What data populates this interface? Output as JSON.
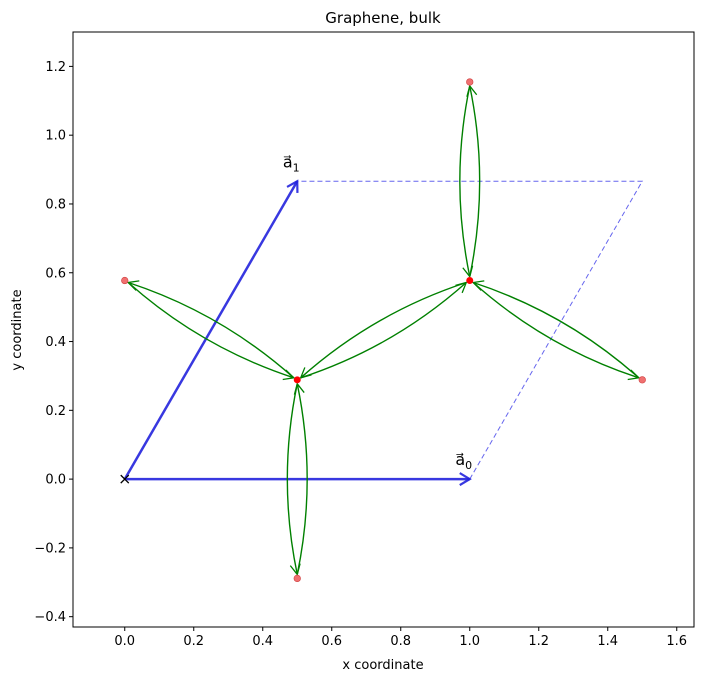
{
  "chart_data": {
    "type": "lattice",
    "title": "Graphene, bulk",
    "x_label": "x coordinate",
    "y_label": "y coordinate",
    "xlim": [
      -0.15,
      1.65
    ],
    "ylim": [
      -0.43,
      1.3
    ],
    "xticks": [
      {
        "value": 0,
        "label": "0.0"
      },
      {
        "value": 0.2,
        "label": "0.2"
      },
      {
        "value": 0.4,
        "label": "0.4"
      },
      {
        "value": 0.6,
        "label": "0.6"
      },
      {
        "value": 0.8,
        "label": "0.8"
      },
      {
        "value": 1.0,
        "label": "1.0"
      },
      {
        "value": 1.2,
        "label": "1.2"
      },
      {
        "value": 1.4,
        "label": "1.4"
      },
      {
        "value": 1.6,
        "label": "1.6"
      }
    ],
    "yticks": [
      {
        "value": -0.4,
        "label": "−0.4"
      },
      {
        "value": -0.2,
        "label": "−0.2"
      },
      {
        "value": 0,
        "label": "0.0"
      },
      {
        "value": 0.2,
        "label": "0.2"
      },
      {
        "value": 0.4,
        "label": "0.4"
      },
      {
        "value": 0.6,
        "label": "0.6"
      },
      {
        "value": 0.8,
        "label": "0.8"
      },
      {
        "value": 1.0,
        "label": "1.0"
      },
      {
        "value": 1.2,
        "label": "1.2"
      }
    ],
    "origin": {
      "x": 0,
      "y": 0
    },
    "vectors": [
      {
        "symbol": "a⃗",
        "index": "0",
        "x": 1.0,
        "y": 0
      },
      {
        "symbol": "a⃗",
        "index": "1",
        "x": 0.5,
        "y": 0.866
      }
    ],
    "sites": [
      {
        "x": 0.5,
        "y": 0.2887
      },
      {
        "x": 1.0,
        "y": 0.5774
      }
    ],
    "images": [
      {
        "x": 0,
        "y": 0.5774
      },
      {
        "x": 0.5,
        "y": -0.2887
      },
      {
        "x": 1.0,
        "y": 1.1547
      },
      {
        "x": 1.5,
        "y": 0.2887
      }
    ],
    "bonds": [
      {
        "x1": 0.5,
        "y1": 0.2887,
        "x2": 0,
        "y2": 0.5774
      },
      {
        "x1": 0.5,
        "y1": 0.2887,
        "x2": 1.0,
        "y2": 0.5774
      },
      {
        "x1": 0.5,
        "y1": 0.2887,
        "x2": 0.5,
        "y2": -0.2887
      },
      {
        "x1": 1.0,
        "y1": 0.5774,
        "x2": 1.0,
        "y2": 1.1547
      },
      {
        "x1": 1.0,
        "y1": 0.5774,
        "x2": 1.5,
        "y2": 0.2887
      }
    ],
    "vector_color": "#2222dd",
    "cell_color": "#6666ee",
    "site_color": "#ff0000",
    "image_color": "#f07070",
    "bond_color": "#008000"
  }
}
